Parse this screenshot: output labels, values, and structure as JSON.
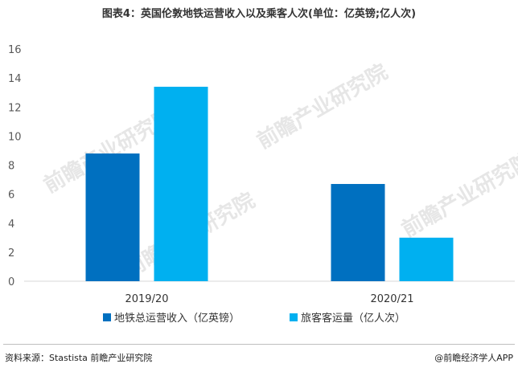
{
  "title": "图表4：英国伦敦地铁运营收入以及乘客人次(单位：亿英镑;亿人次)",
  "footer": {
    "source": "资料来源：Stastista 前瞻产业研究院",
    "brand": "@前瞻经济学人APP"
  },
  "watermark": "前瞻产业研究院",
  "chart_data": {
    "type": "bar",
    "categories": [
      "2019/20",
      "2020/21"
    ],
    "series": [
      {
        "name": "地铁总运营收入（亿英镑）",
        "values": [
          8.8,
          6.7
        ],
        "color": "#0070c0"
      },
      {
        "name": "旅客客运量（亿人次）",
        "values": [
          13.4,
          3.0
        ],
        "color": "#00b0f0"
      }
    ],
    "ylim": [
      0,
      16
    ],
    "yticks": [
      0,
      2,
      4,
      6,
      8,
      10,
      12,
      14,
      16
    ],
    "grid": false,
    "legend_position": "bottom"
  }
}
